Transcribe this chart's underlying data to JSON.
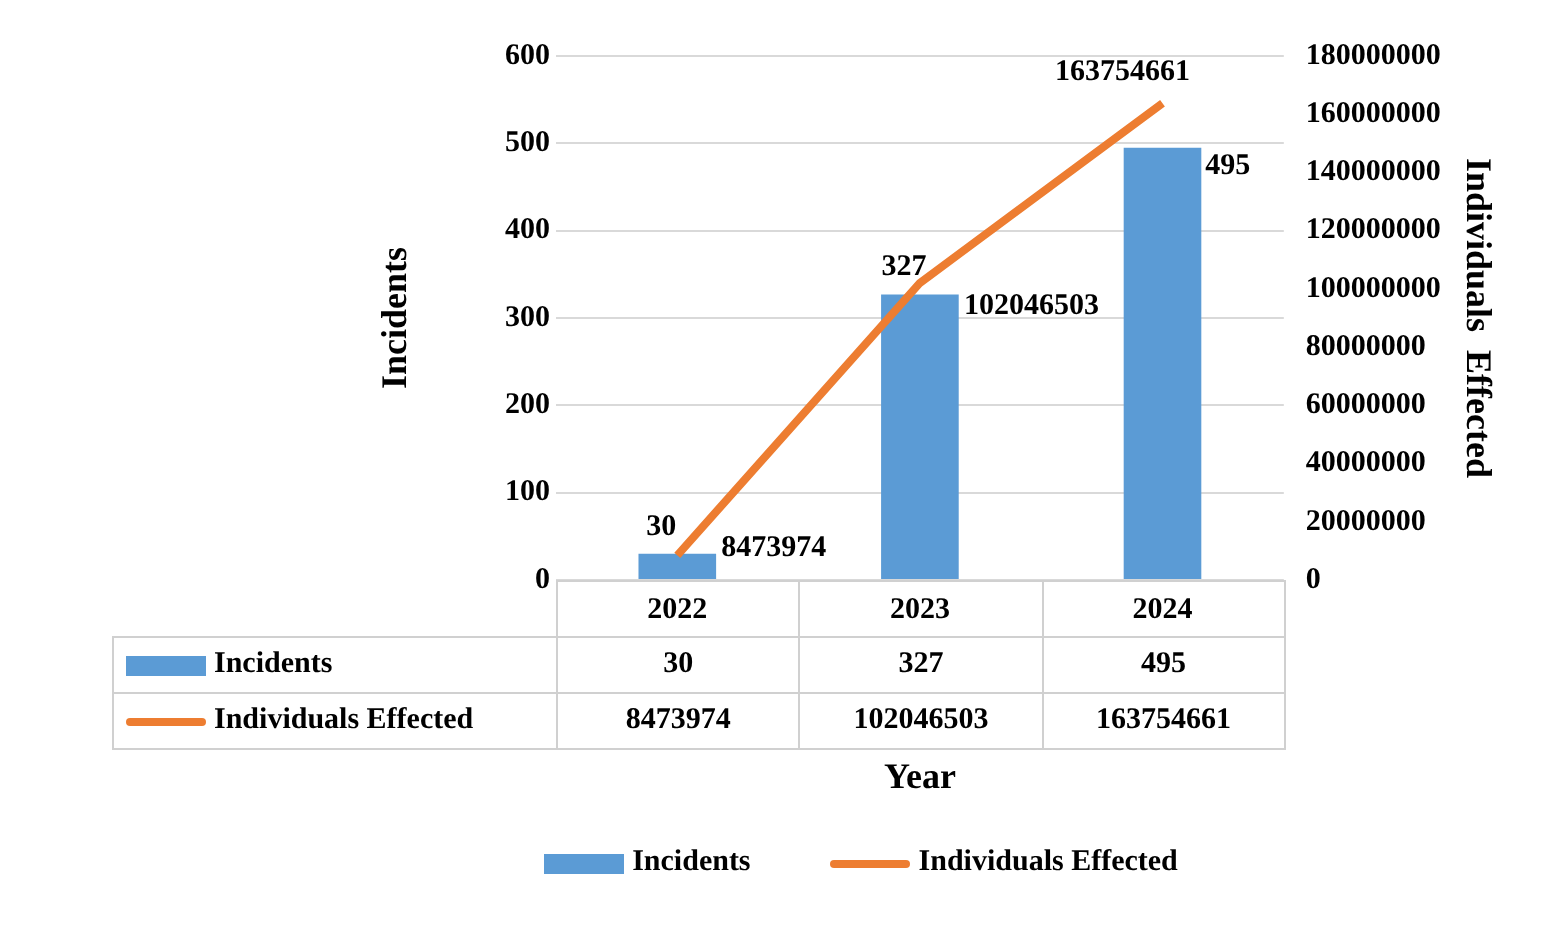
{
  "chart_data": {
    "type": "bar",
    "xlabel": "Year",
    "ylabel": "Incidents",
    "y2label": "Individuals  Effected",
    "categories": [
      "2022",
      "2023",
      "2024"
    ],
    "series": [
      {
        "name": "Incidents",
        "color": "#5b9bd5",
        "values": [
          30,
          327,
          495
        ],
        "value_labels": [
          "30",
          "327",
          "495"
        ]
      },
      {
        "name": "Individuals Effected",
        "type": "line",
        "axis": "y2",
        "color": "#ed7d31",
        "values": [
          8473974,
          102046503,
          163754661
        ],
        "value_labels": [
          "8473974",
          "102046503",
          "163754661"
        ],
        "marker": "none"
      }
    ],
    "ylim": [
      0,
      600
    ],
    "yticks": [
      0,
      100,
      200,
      300,
      400,
      500,
      600
    ],
    "y2lim": [
      0,
      180000000
    ],
    "y2ticks": [
      0,
      20000000,
      40000000,
      60000000,
      80000000,
      100000000,
      120000000,
      140000000,
      160000000,
      180000000
    ],
    "grid": "y",
    "legend": "bottom",
    "annotations": [
      "30",
      "327",
      "495",
      "8473974",
      "102046503",
      "163754661"
    ]
  }
}
